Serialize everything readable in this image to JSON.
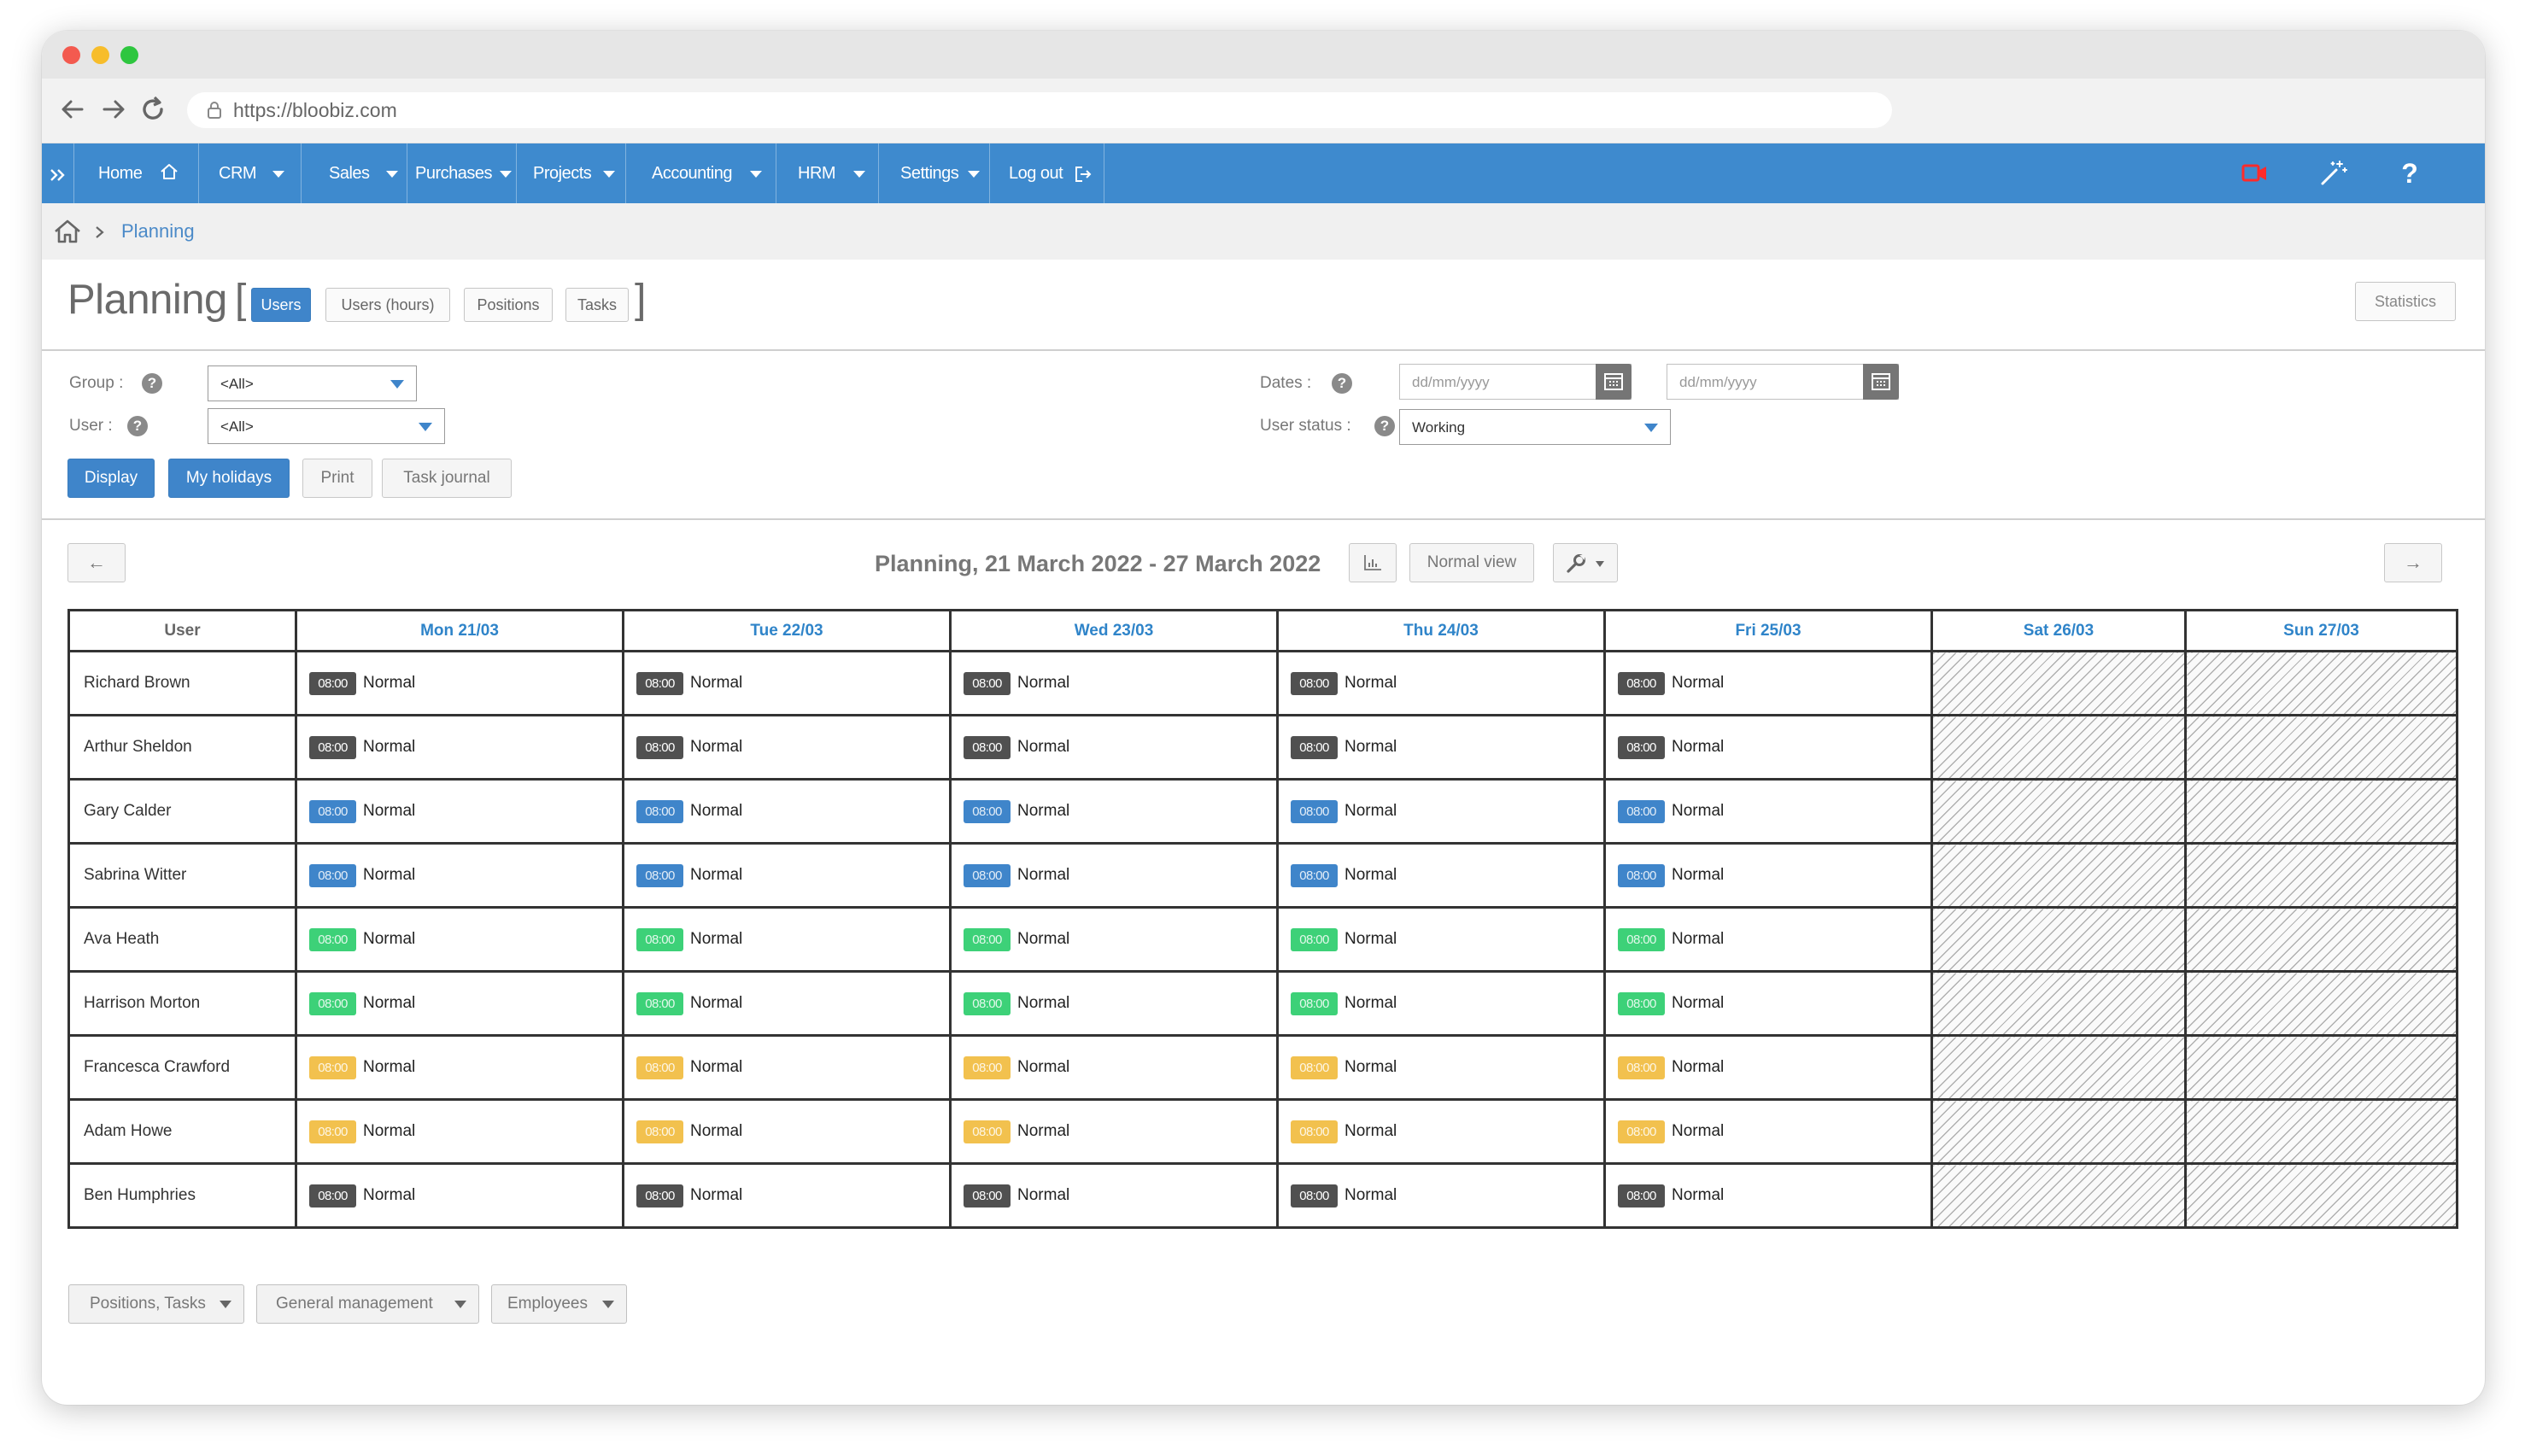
{
  "browser": {
    "url": "https://bloobiz.com"
  },
  "nav": {
    "items": [
      {
        "label": "Home"
      },
      {
        "label": "CRM"
      },
      {
        "label": "Sales"
      },
      {
        "label": "Purchases"
      },
      {
        "label": "Projects"
      },
      {
        "label": "Accounting"
      },
      {
        "label": "HRM"
      },
      {
        "label": "Settings"
      },
      {
        "label": "Log out"
      }
    ],
    "right_icons": [
      "video-icon",
      "magic-wand-icon",
      "help-icon"
    ],
    "help_glyph": "?"
  },
  "breadcrumb": {
    "current": "Planning"
  },
  "header": {
    "title": "Planning",
    "view_tabs": [
      {
        "label": "Users",
        "active": true
      },
      {
        "label": "Users (hours)"
      },
      {
        "label": "Positions"
      },
      {
        "label": "Tasks"
      }
    ],
    "statistics_label": "Statistics"
  },
  "filters": {
    "group_label": "Group :",
    "group_value": "<All>",
    "user_label": "User :",
    "user_value": "<All>",
    "dates_label": "Dates :",
    "date_from_placeholder": "dd/mm/yyyy",
    "date_to_placeholder": "dd/mm/yyyy",
    "user_status_label": "User status :",
    "user_status_value": "Working",
    "help_glyph": "?",
    "buttons": {
      "display": "Display",
      "my_holidays": "My holidays",
      "print": "Print",
      "task_journal": "Task journal"
    }
  },
  "planning": {
    "title": "Planning, 21 March 2022 - 27 March 2022",
    "prev_glyph": "←",
    "next_glyph": "→",
    "view_mode": "Normal view",
    "user_header": "User",
    "days": [
      "Mon 21/03",
      "Tue 22/03",
      "Wed 23/03",
      "Thu 24/03",
      "Fri 25/03",
      "Sat 26/03",
      "Sun 27/03"
    ],
    "shift_time": "08:00",
    "shift_label": "Normal",
    "rows": [
      {
        "user": "Richard Brown",
        "color": "#505050"
      },
      {
        "user": "Arthur Sheldon",
        "color": "#505050"
      },
      {
        "user": "Gary Calder",
        "color": "#3f85ca"
      },
      {
        "user": "Sabrina Witter",
        "color": "#3f85ca"
      },
      {
        "user": "Ava Heath",
        "color": "#3dd178"
      },
      {
        "user": "Harrison Morton",
        "color": "#3dd178"
      },
      {
        "user": "Francesca Crawford",
        "color": "#f2c14e"
      },
      {
        "user": "Adam Howe",
        "color": "#f2c14e"
      },
      {
        "user": "Ben Humphries",
        "color": "#505050"
      }
    ]
  },
  "footer_buttons": [
    {
      "label": "Positions, Tasks"
    },
    {
      "label": "General management"
    },
    {
      "label": "Employees"
    }
  ]
}
